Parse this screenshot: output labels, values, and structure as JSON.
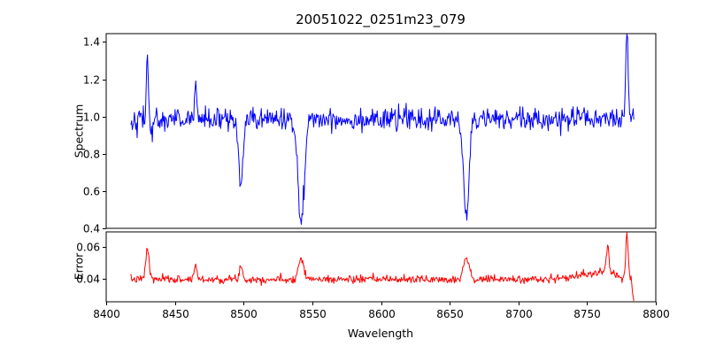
{
  "chart_data": {
    "type": "line",
    "title": "20051022_0251m23_079",
    "xlabel": "Wavelength",
    "grid": false,
    "legend": false,
    "xlim": [
      8400,
      8800
    ],
    "xticks": [
      8400,
      8450,
      8500,
      8550,
      8600,
      8650,
      8700,
      8750,
      8800
    ],
    "xtick_labels": [
      "8400",
      "8450",
      "8500",
      "8550",
      "8600",
      "8650",
      "8700",
      "8750",
      "8800"
    ],
    "x_range": [
      8418,
      8784
    ],
    "panels": [
      {
        "name": "spectrum",
        "ylabel": "Spectrum",
        "color": "#0000ff",
        "ylim": [
          0.4,
          1.445
        ],
        "yticks": [
          0.4,
          0.6,
          0.8,
          1.0,
          1.2,
          1.4
        ],
        "ytick_labels": [
          "0.4",
          "0.6",
          "0.8",
          "1.0",
          "1.2",
          "1.4"
        ],
        "generator": {
          "seed": 42,
          "n": 730,
          "continuum": 0.985,
          "noise_sigma": 0.03,
          "features": [
            {
              "center": 8430,
              "amp": 0.36,
              "sigma": 0.7
            },
            {
              "center": 8433,
              "amp": -0.1,
              "sigma": 0.8
            },
            {
              "center": 8465,
              "amp": 0.22,
              "sigma": 0.7
            },
            {
              "center": 8498,
              "amp": -0.37,
              "sigma": 1.6
            },
            {
              "center": 8542,
              "amp": -0.55,
              "sigma": 2.2
            },
            {
              "center": 8662,
              "amp": -0.52,
              "sigma": 2.0
            },
            {
              "center": 8779,
              "amp": 0.45,
              "sigma": 0.9
            }
          ]
        }
      },
      {
        "name": "error",
        "ylabel": "Error",
        "color": "#ff0000",
        "ylim": [
          0.026,
          0.069
        ],
        "yticks": [
          0.04,
          0.06
        ],
        "ytick_labels": [
          "0.04",
          "0.06"
        ],
        "generator": {
          "seed": 7,
          "n": 730,
          "continuum": 0.0398,
          "noise_sigma": 0.0012,
          "features": [
            {
              "center": 8430,
              "amp": 0.019,
              "sigma": 1.2
            },
            {
              "center": 8465,
              "amp": 0.009,
              "sigma": 1.0
            },
            {
              "center": 8498,
              "amp": 0.008,
              "sigma": 1.2
            },
            {
              "center": 8542,
              "amp": 0.013,
              "sigma": 2.0
            },
            {
              "center": 8662,
              "amp": 0.014,
              "sigma": 2.0
            },
            {
              "center": 8760,
              "amp": 0.004,
              "sigma": 15
            },
            {
              "center": 8765,
              "amp": 0.016,
              "sigma": 1.0
            },
            {
              "center": 8779,
              "amp": 0.028,
              "sigma": 0.8
            },
            {
              "center": 8784,
              "amp": -0.013,
              "sigma": 1.0
            }
          ]
        }
      }
    ]
  }
}
